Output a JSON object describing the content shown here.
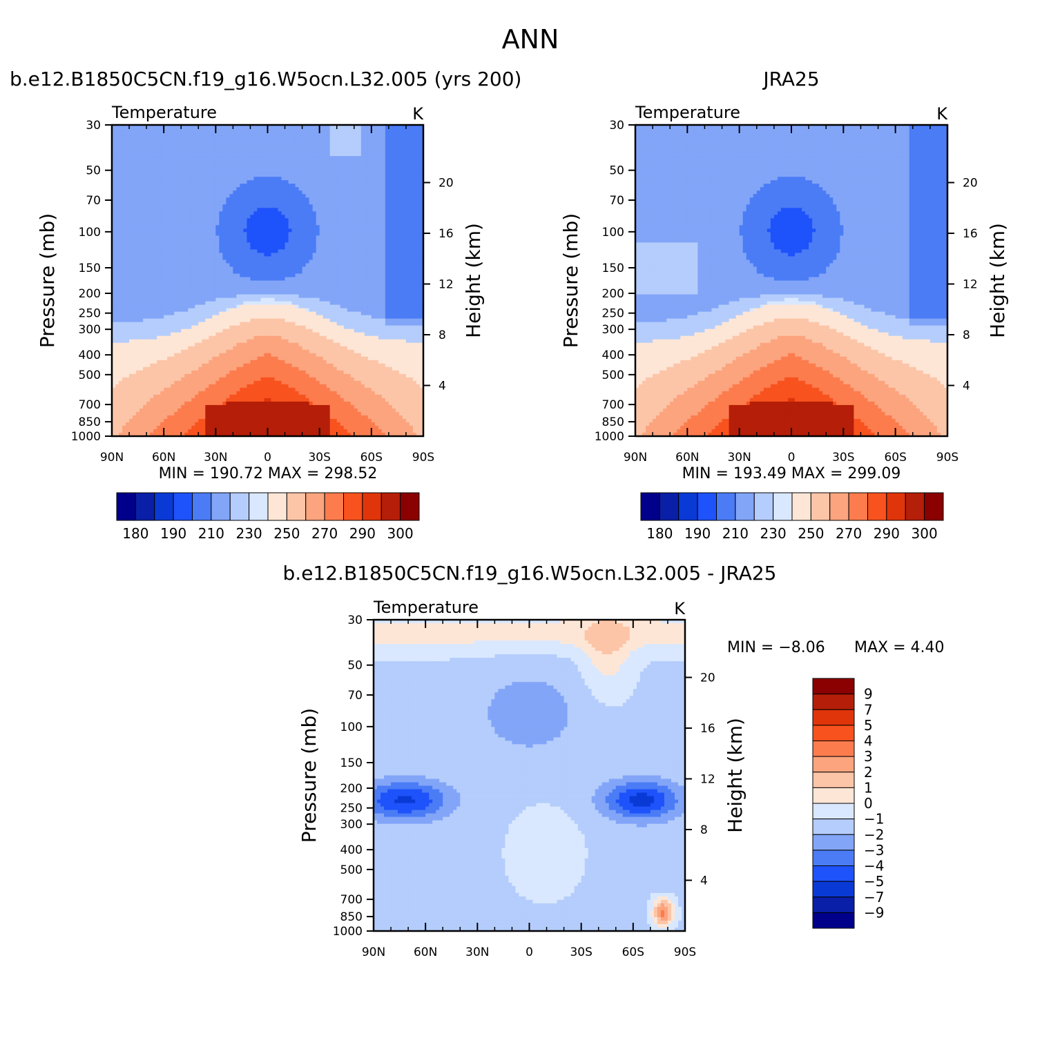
{
  "figure": {
    "title": "ANN",
    "panel_titles": [
      "b.e12.B1850C5CN.f19_g16.W5ocn.L32.005 (yrs 200)",
      "JRA25",
      "b.e12.B1850C5CN.f19_g16.W5ocn.L32.005 - JRA25"
    ]
  },
  "chart_data": [
    {
      "type": "heatmap",
      "title": "b.e12.B1850C5CN.f19_g16.W5ocn.L32.005 (yrs 200)",
      "variable": "Temperature",
      "units": "K",
      "ylabel": "Pressure (mb)",
      "y2label": "Height (km)",
      "x_ticks": [
        "90N",
        "60N",
        "30N",
        "0",
        "30S",
        "60S",
        "90S"
      ],
      "y_ticks": [
        "30",
        "50",
        "70",
        "100",
        "150",
        "200",
        "250",
        "300",
        "400",
        "500",
        "700",
        "850",
        "1000"
      ],
      "y2_ticks": [
        "20",
        "16",
        "12",
        "8",
        "4"
      ],
      "ylim": [
        1000,
        30
      ],
      "min_label": "MIN = 190.72",
      "max_label": "MAX = 298.52",
      "min": 190.72,
      "max": 298.52,
      "colorbar": {
        "orientation": "horizontal",
        "levels": [
          "180",
          "190",
          "210",
          "230",
          "250",
          "270",
          "290",
          "300"
        ],
        "colors": [
          "#00008b",
          "#0a1fa8",
          "#0a3ad6",
          "#1e52fa",
          "#4b7cf6",
          "#82a5f8",
          "#b4cdfc",
          "#d9e8fe",
          "#fee6d6",
          "#fcc5a8",
          "#fca47e",
          "#fc7c4e",
          "#f8521e",
          "#e0350a",
          "#b51e08",
          "#8b0000"
        ]
      }
    },
    {
      "type": "heatmap",
      "title": "JRA25",
      "variable": "Temperature",
      "units": "K",
      "ylabel": "Pressure (mb)",
      "y2label": "Height (km)",
      "x_ticks": [
        "90N",
        "60N",
        "30N",
        "0",
        "30S",
        "60S",
        "90S"
      ],
      "y_ticks": [
        "30",
        "50",
        "70",
        "100",
        "150",
        "200",
        "250",
        "300",
        "400",
        "500",
        "700",
        "850",
        "1000"
      ],
      "y2_ticks": [
        "20",
        "16",
        "12",
        "8",
        "4"
      ],
      "ylim": [
        1000,
        30
      ],
      "min_label": "MIN = 193.49",
      "max_label": "MAX = 299.09",
      "min": 193.49,
      "max": 299.09,
      "colorbar": {
        "orientation": "horizontal",
        "levels": [
          "180",
          "190",
          "210",
          "230",
          "250",
          "270",
          "290",
          "300"
        ],
        "colors": [
          "#00008b",
          "#0a1fa8",
          "#0a3ad6",
          "#1e52fa",
          "#4b7cf6",
          "#82a5f8",
          "#b4cdfc",
          "#d9e8fe",
          "#fee6d6",
          "#fcc5a8",
          "#fca47e",
          "#fc7c4e",
          "#f8521e",
          "#e0350a",
          "#b51e08",
          "#8b0000"
        ]
      }
    },
    {
      "type": "heatmap",
      "title": "b.e12.B1850C5CN.f19_g16.W5ocn.L32.005 - JRA25",
      "variable": "Temperature",
      "units": "K",
      "ylabel": "Pressure (mb)",
      "y2label": "Height (km)",
      "x_ticks": [
        "90N",
        "60N",
        "30N",
        "0",
        "30S",
        "60S",
        "90S"
      ],
      "y_ticks": [
        "30",
        "50",
        "70",
        "100",
        "150",
        "200",
        "250",
        "300",
        "400",
        "500",
        "700",
        "850",
        "1000"
      ],
      "y2_ticks": [
        "20",
        "16",
        "12",
        "8",
        "4"
      ],
      "ylim": [
        1000,
        30
      ],
      "min_label": "MIN =    -8.06",
      "max_label": "MAX =     4.40",
      "min": -8.06,
      "max": 4.4,
      "colorbar": {
        "orientation": "vertical",
        "levels": [
          "9",
          "7",
          "5",
          "4",
          "3",
          "2",
          "1",
          "0",
          "-1",
          "-2",
          "-3",
          "-4",
          "-5",
          "-7",
          "-9"
        ],
        "colors": [
          "#8b0000",
          "#b51e08",
          "#e0350a",
          "#f8521e",
          "#fc7c4e",
          "#fca47e",
          "#fcc5a8",
          "#fee6d6",
          "#d9e8fe",
          "#b4cdfc",
          "#82a5f8",
          "#4b7cf6",
          "#1e52fa",
          "#0a3ad6",
          "#0a1fa8",
          "#00008b"
        ]
      }
    }
  ]
}
